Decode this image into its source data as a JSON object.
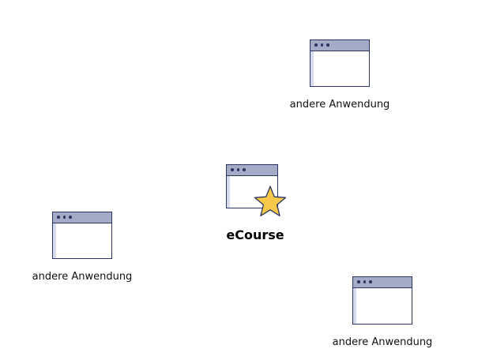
{
  "center": {
    "label": "eCourse",
    "icon": "app-window-star-icon",
    "star_color": "#f7c94a"
  },
  "apps": [
    {
      "label": "andere Anwendung",
      "icon": "app-window-icon"
    },
    {
      "label": "andere Anwendung",
      "icon": "app-window-icon"
    },
    {
      "label": "andere Anwendung",
      "icon": "app-window-icon"
    }
  ],
  "colors": {
    "window_border": "#2c3561",
    "title_bar": "#a4abc6",
    "side_strip": "#d7dbec"
  }
}
